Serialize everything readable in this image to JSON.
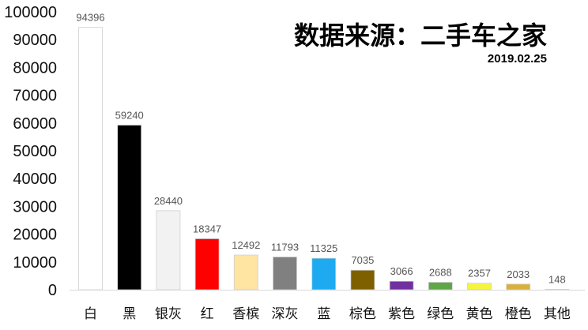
{
  "chart_data": {
    "type": "bar",
    "title": "数据来源：二手车之家",
    "subtitle": "2019.02.25",
    "xlabel": "",
    "ylabel": "",
    "ylim": [
      0,
      100000
    ],
    "yticks": [
      "0",
      "10000",
      "20000",
      "30000",
      "40000",
      "50000",
      "60000",
      "70000",
      "80000",
      "90000",
      "100000"
    ],
    "grid": false,
    "legend": "none",
    "categories": [
      "白",
      "黑",
      "银灰",
      "红",
      "香槟",
      "深灰",
      "蓝",
      "棕色",
      "紫色",
      "绿色",
      "黄色",
      "橙色",
      "其他"
    ],
    "values": [
      94396,
      59240,
      28440,
      18347,
      12492,
      11793,
      11325,
      7035,
      3066,
      2688,
      2357,
      2033,
      148
    ],
    "colors": [
      "#ffffff",
      "#000000",
      "#f2f2f2",
      "#ff0000",
      "#ffe5a1",
      "#808080",
      "#1eaaf1",
      "#7f6000",
      "#7030a0",
      "#5ea646",
      "#f5f540",
      "#d9b13a",
      "#b0b0b0"
    ]
  }
}
